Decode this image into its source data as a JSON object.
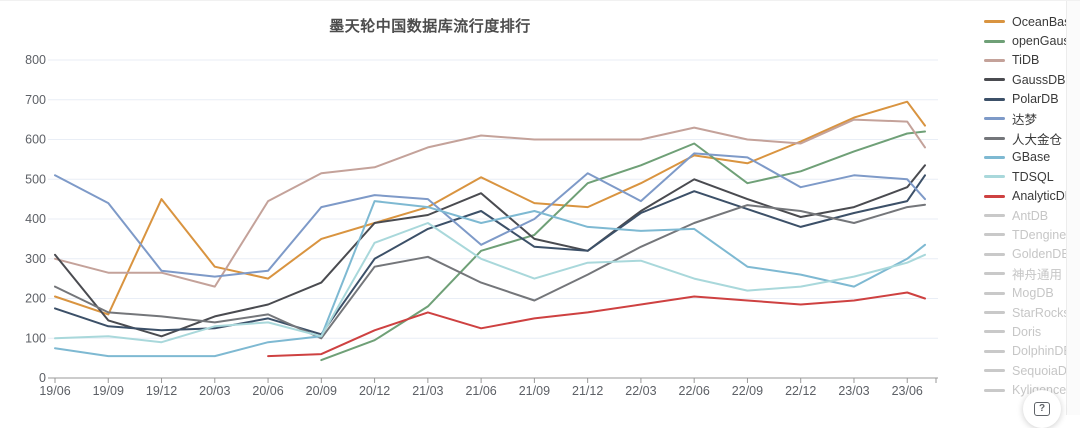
{
  "page": {
    "help_label": "?"
  },
  "chart_data": {
    "type": "line",
    "title": "墨天轮中国数据库流行度排行",
    "xlabel": "",
    "ylabel": "",
    "ylim": [
      0,
      800
    ],
    "y_ticks": [
      0,
      100,
      200,
      300,
      400,
      500,
      600,
      700,
      800
    ],
    "grid": true,
    "legend_position": "right",
    "x_tick_labels": [
      "19/06",
      "19/09",
      "19/12",
      "20/03",
      "20/06",
      "20/09",
      "20/12",
      "21/03",
      "21/06",
      "21/09",
      "21/12",
      "22/03",
      "22/06",
      "22/09",
      "22/12",
      "23/03",
      "23/06"
    ],
    "x_tick_months": [
      0,
      3,
      6,
      9,
      12,
      15,
      18,
      21,
      24,
      27,
      30,
      33,
      36,
      39,
      42,
      45,
      48
    ],
    "series_months": [
      0,
      3,
      6,
      9,
      12,
      15,
      18,
      21,
      24,
      27,
      30,
      33,
      36,
      39,
      42,
      45,
      48,
      49
    ],
    "colors": {
      "grid": "#e9eef6",
      "axis": "#999999",
      "tick_label": "#5d6066",
      "title": "#4c4c4c",
      "inactive": "#c9c9c9"
    },
    "series": [
      {
        "name": "OceanBase",
        "color": "#d99440",
        "active": true,
        "values": [
          205,
          160,
          450,
          280,
          250,
          350,
          390,
          430,
          505,
          440,
          430,
          490,
          560,
          540,
          595,
          655,
          695,
          635
        ]
      },
      {
        "name": "openGauss",
        "color": "#6fa077",
        "active": true,
        "values": [
          null,
          null,
          null,
          null,
          null,
          45,
          95,
          180,
          320,
          360,
          490,
          535,
          590,
          490,
          520,
          570,
          615,
          620
        ]
      },
      {
        "name": "TiDB",
        "color": "#c4a29a",
        "active": true,
        "values": [
          300,
          265,
          265,
          230,
          445,
          515,
          530,
          580,
          610,
          600,
          600,
          600,
          630,
          600,
          590,
          650,
          645,
          580
        ]
      },
      {
        "name": "GaussDB",
        "color": "#4a4b50",
        "active": true,
        "values": [
          310,
          145,
          105,
          155,
          185,
          240,
          390,
          410,
          465,
          350,
          320,
          420,
          500,
          450,
          405,
          430,
          480,
          535
        ]
      },
      {
        "name": "PolarDB",
        "color": "#3c5068",
        "active": true,
        "values": [
          175,
          130,
          120,
          125,
          150,
          110,
          300,
          375,
          420,
          330,
          320,
          415,
          470,
          425,
          380,
          415,
          445,
          510
        ]
      },
      {
        "name": "达梦",
        "color": "#7e9ac8",
        "active": true,
        "values": [
          510,
          440,
          270,
          255,
          270,
          430,
          460,
          450,
          335,
          400,
          515,
          445,
          565,
          555,
          480,
          510,
          500,
          450
        ]
      },
      {
        "name": "人大金仓",
        "color": "#74767a",
        "active": true,
        "values": [
          230,
          165,
          155,
          140,
          160,
          100,
          280,
          305,
          240,
          195,
          260,
          330,
          390,
          435,
          420,
          390,
          430,
          436
        ]
      },
      {
        "name": "GBase",
        "color": "#7eb9d2",
        "active": true,
        "values": [
          75,
          55,
          55,
          55,
          90,
          105,
          445,
          430,
          390,
          420,
          380,
          370,
          375,
          280,
          260,
          230,
          300,
          335
        ]
      },
      {
        "name": "TDSQL",
        "color": "#a9d8db",
        "active": true,
        "values": [
          100,
          105,
          90,
          130,
          140,
          105,
          340,
          390,
          300,
          250,
          290,
          295,
          250,
          220,
          230,
          255,
          290,
          310
        ]
      },
      {
        "name": "AnalyticDB",
        "color": "#ce4141",
        "active": true,
        "values": [
          null,
          null,
          null,
          null,
          55,
          60,
          120,
          165,
          125,
          150,
          165,
          185,
          205,
          195,
          185,
          195,
          215,
          200
        ]
      },
      {
        "name": "AntDB",
        "active": false
      },
      {
        "name": "TDengine",
        "active": false
      },
      {
        "name": "GoldenDB",
        "active": false
      },
      {
        "name": "神舟通用",
        "active": false
      },
      {
        "name": "MogDB",
        "active": false
      },
      {
        "name": "StarRocks",
        "active": false
      },
      {
        "name": "Doris",
        "active": false
      },
      {
        "name": "DolphinDB",
        "active": false
      },
      {
        "name": "SequoiaDB",
        "active": false
      },
      {
        "name": "Kyligence",
        "active": false
      }
    ]
  }
}
